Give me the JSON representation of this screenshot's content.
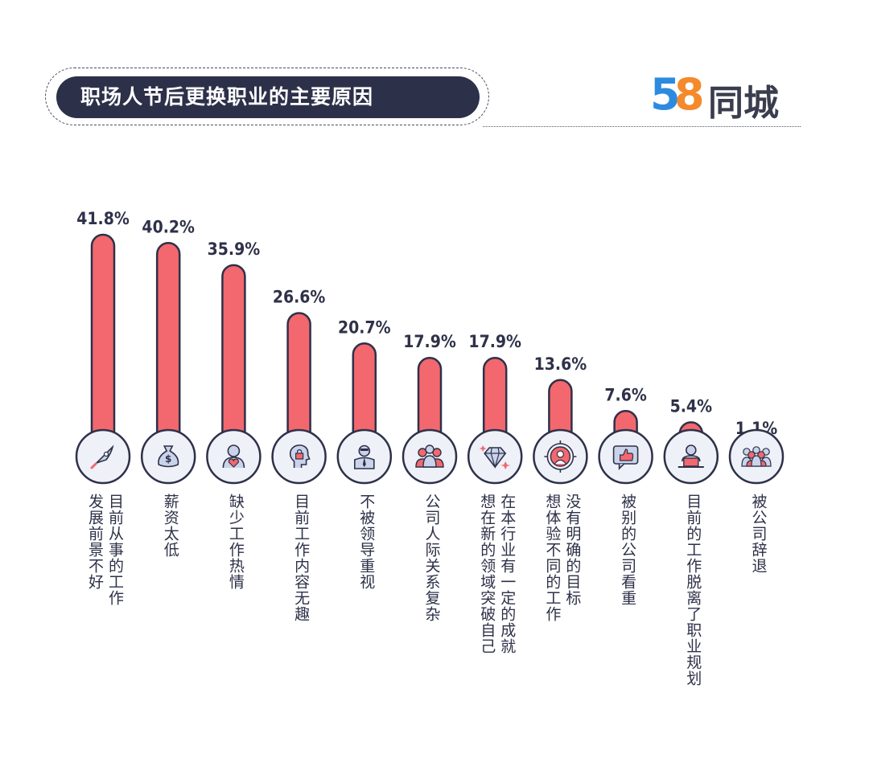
{
  "header": {
    "title": "职场人节后更换职业的主要原因",
    "logo_number_5": "5",
    "logo_number_8": "8",
    "logo_text": "同城"
  },
  "colors": {
    "bar_fill": "#f2686e",
    "bar_stroke": "#2e3148",
    "circle_fill": "#eef1f7",
    "pill": "#2d3049"
  },
  "chart_data": {
    "type": "bar",
    "categories": [
      "目前从事的工作发展前景不好",
      "薪资太低",
      "缺少工作热情",
      "目前工作内容无趣",
      "不被领导重视",
      "公司人际关系复杂",
      "在本行业有一定的成就想在新的领域突破自己",
      "没有明确的目标想体验不同的工作",
      "被别的公司看重",
      "目前的工作脱离了职业规划",
      "被公司辞退"
    ],
    "values": [
      41.8,
      40.2,
      35.9,
      26.6,
      20.7,
      17.9,
      17.9,
      13.6,
      7.6,
      5.4,
      1.1
    ],
    "value_labels": [
      "41.8%",
      "40.2%",
      "35.9%",
      "26.6%",
      "20.7%",
      "17.9%",
      "17.9%",
      "13.6%",
      "7.6%",
      "5.4%",
      "1.1%"
    ],
    "label_columns": [
      [
        "目前从事的工作",
        "发展前景不好"
      ],
      [
        "薪资太低"
      ],
      [
        "缺少工作热情"
      ],
      [
        "目前工作内容无趣"
      ],
      [
        "不被领导重视"
      ],
      [
        "公司人际关系复杂"
      ],
      [
        "在本行业有一定的成就",
        "想在新的领域突破自己"
      ],
      [
        "没有明确的目标",
        "想体验不同的工作"
      ],
      [
        "被别的公司看重"
      ],
      [
        "目前的工作脱离了职业规划"
      ],
      [
        "被公司辞退"
      ]
    ],
    "icons": [
      "rocket-icon",
      "money-bag-icon",
      "person-heart-icon",
      "head-lock-icon",
      "businessman-icon",
      "team-icon",
      "diamond-icon",
      "target-person-icon",
      "thumbs-up-icon",
      "person-laptop-icon",
      "crowd-icon"
    ],
    "ylim": [
      0,
      41.8
    ],
    "grid": false,
    "legend": "none"
  }
}
